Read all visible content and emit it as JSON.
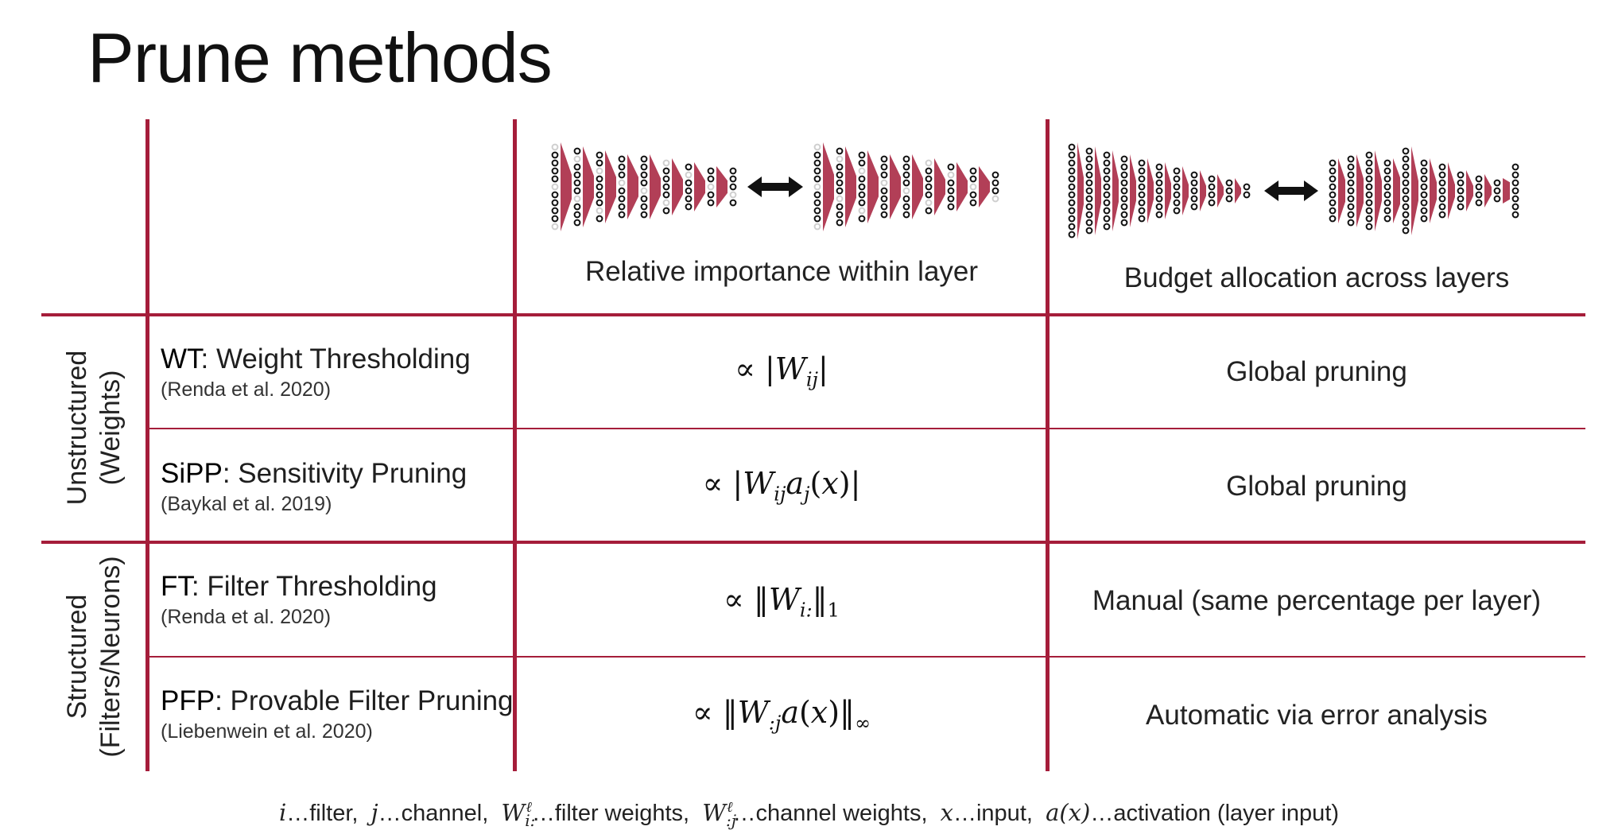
{
  "title": "Prune methods",
  "column_headers": {
    "relative": "Relative importance within layer",
    "budget": "Budget allocation across layers"
  },
  "groups": [
    {
      "line1": "Unstructured",
      "line2": "(Weights)"
    },
    {
      "line1": "Structured",
      "line2": "(Filters/Neurons)"
    }
  ],
  "rows": [
    {
      "abbr": "WT",
      "name": ": Weight Thresholding",
      "ref": "(Renda et al. 2020)",
      "budget": "Global pruning"
    },
    {
      "abbr": "SiPP",
      "name": ": Sensitivity Pruning",
      "ref": "(Baykal et al. 2019)",
      "budget": "Global pruning"
    },
    {
      "abbr": "FT",
      "name": ": Filter Thresholding",
      "ref": "(Renda et al. 2020)",
      "budget": "Manual (same percentage per layer)"
    },
    {
      "abbr": "PFP",
      "name": ": Provable Filter Pruning",
      "ref": "(Liebenwein et al. 2020)",
      "budget": "Automatic via error analysis"
    }
  ],
  "footer": {
    "i": "i",
    "i_desc": "…filter,",
    "j": "j",
    "j_desc": "…channel,",
    "w1_desc": "…filter weights,",
    "w2_desc": "…channel weights,",
    "x": "x",
    "x_desc": "…input,",
    "a": "a(x)",
    "a_desc": "…activation (layer input)"
  },
  "colors": {
    "accent": "#a51d3a",
    "pruned": "#cfcfcf",
    "text": "#222222"
  }
}
